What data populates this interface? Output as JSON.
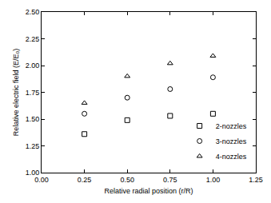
{
  "chart_data": {
    "type": "scatter",
    "x_label": "Relative radial position (r/R)",
    "y_label": "Relative electric field (E/E₀)",
    "x": [
      0.25,
      0.5,
      0.75,
      1.0
    ],
    "series": [
      {
        "name": "2-nozzles",
        "color": "#000000",
        "marker": "square",
        "values": [
          1.36,
          1.49,
          1.53,
          1.55
        ]
      },
      {
        "name": "3-nozzles",
        "color": "#000000",
        "marker": "circle",
        "values": [
          1.55,
          1.7,
          1.78,
          1.89
        ]
      },
      {
        "name": "4-nozzles",
        "color": "#000000",
        "marker": "triangle",
        "values": [
          1.65,
          1.9,
          2.02,
          2.09
        ]
      }
    ],
    "xlim": [
      0,
      1.25
    ],
    "xticks": [
      {
        "value": 0,
        "label": "0.00"
      },
      {
        "value": 0.25,
        "label": "0.25"
      },
      {
        "value": 0.5,
        "label": "0.50"
      },
      {
        "value": 0.75,
        "label": "0.75"
      },
      {
        "value": 1,
        "label": "1.00"
      },
      {
        "value": 1.25,
        "label": "1.25"
      }
    ],
    "ylim": [
      1,
      2.5
    ],
    "yticks": [
      {
        "value": 1,
        "label": "1.00"
      },
      {
        "value": 1.25,
        "label": "1.25"
      },
      {
        "value": 1.5,
        "label": "1.50"
      },
      {
        "value": 1.75,
        "label": "1.75"
      },
      {
        "value": 2,
        "label": "2.00"
      },
      {
        "value": 2.25,
        "label": "2.25"
      },
      {
        "value": 2.5,
        "label": "2.50"
      }
    ],
    "grid": false,
    "legend": "lower right"
  }
}
